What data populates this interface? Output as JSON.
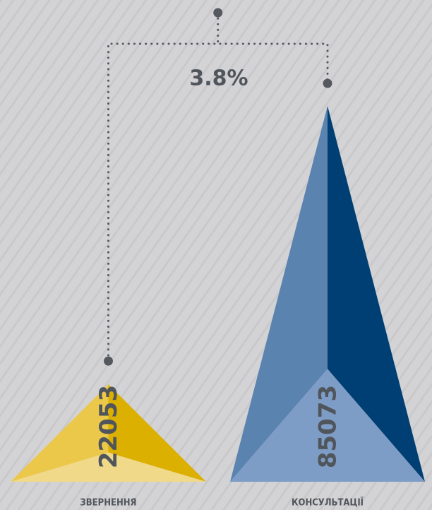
{
  "chart_data": {
    "type": "pyramid",
    "categories": [
      "ЗВЕРНЕННЯ",
      "КОНСУЛЬТАЦІЇ"
    ],
    "values": [
      22053,
      85073
    ],
    "colors": [
      [
        "#ecc84a",
        "#dcb000",
        "#f1d98a"
      ],
      [
        "#5b83b0",
        "#003f73",
        "#7e9dc6"
      ]
    ],
    "annotation": "3.8%"
  }
}
